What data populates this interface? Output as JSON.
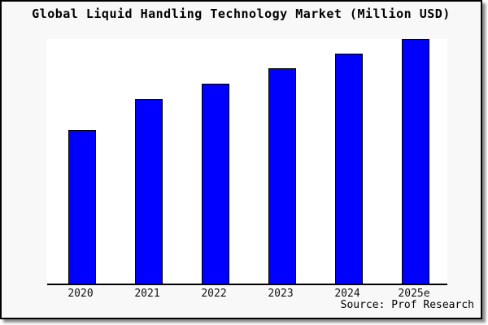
{
  "chart": {
    "title": "Global Liquid Handling Technology Market (Million USD)",
    "source": "Source: Prof Research"
  },
  "chart_data": {
    "type": "bar",
    "title": "Global Liquid Handling Technology Market (Million USD)",
    "categories": [
      "2020",
      "2021",
      "2022",
      "2023",
      "2024",
      "2025e"
    ],
    "values": [
      62.7,
      75.3,
      81.7,
      88.0,
      94.0,
      100.0
    ],
    "xlabel": "",
    "ylabel": "",
    "ylim": [
      0,
      100
    ],
    "grid": false,
    "legend": false,
    "y_axis_labels_shown": false,
    "note": "No y-axis scale is rendered in the image; values are relative bar heights indexed to 2025e = 100.",
    "annotations": [
      "Source: Prof Research"
    ],
    "colors": {
      "bar_fill": "#0000ff",
      "bar_border": "#000000",
      "plot_background": "#ffffff",
      "panel_background": "#f8f8f8",
      "frame_border": "#000000",
      "text": "#000000"
    }
  }
}
